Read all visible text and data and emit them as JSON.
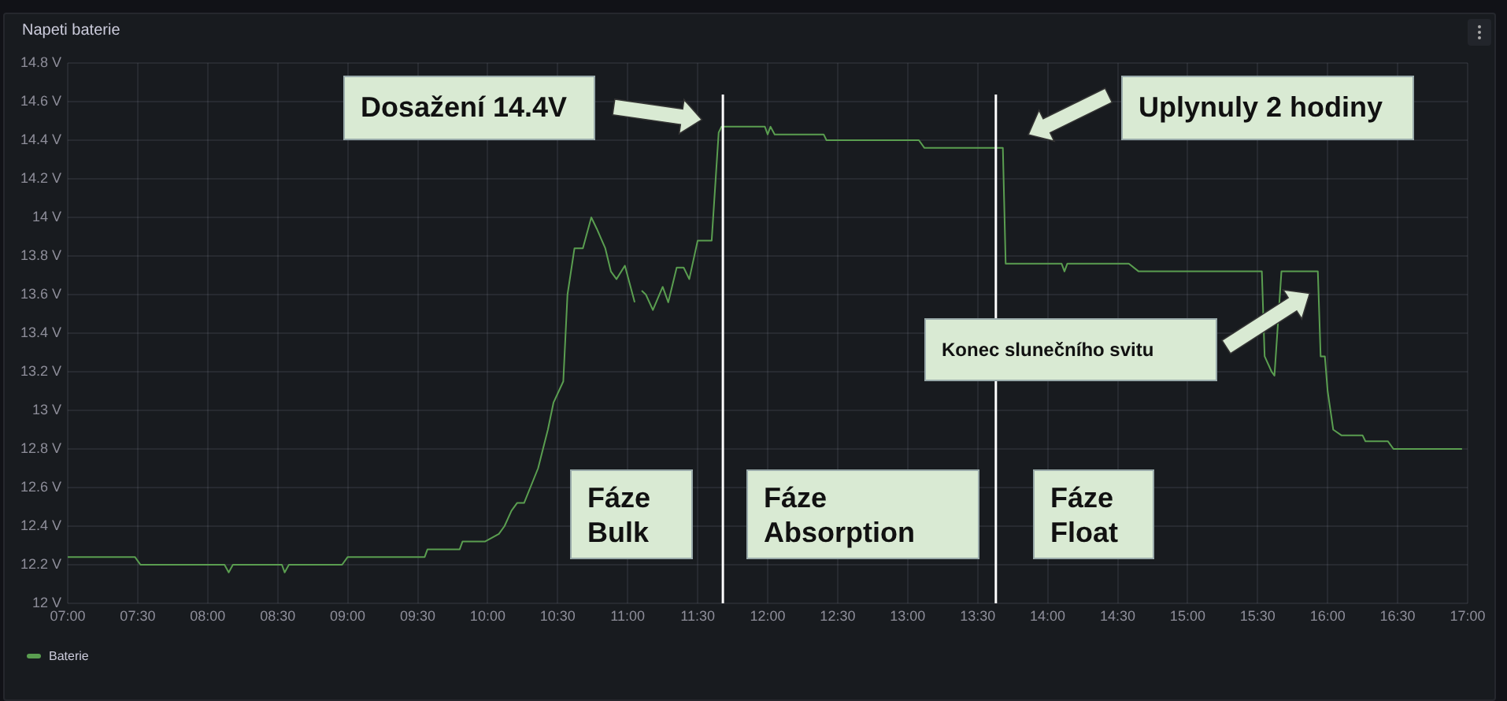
{
  "chart_data": {
    "type": "line",
    "title": "Napeti baterie",
    "xlim": [
      7,
      17
    ],
    "xticks": [
      {
        "value": 7,
        "label": "07:00"
      },
      {
        "value": 7.5,
        "label": "07:30"
      },
      {
        "value": 8,
        "label": "08:00"
      },
      {
        "value": 8.5,
        "label": "08:30"
      },
      {
        "value": 9,
        "label": "09:00"
      },
      {
        "value": 9.5,
        "label": "09:30"
      },
      {
        "value": 10,
        "label": "10:00"
      },
      {
        "value": 10.5,
        "label": "10:30"
      },
      {
        "value": 11,
        "label": "11:00"
      },
      {
        "value": 11.5,
        "label": "11:30"
      },
      {
        "value": 12,
        "label": "12:00"
      },
      {
        "value": 12.5,
        "label": "12:30"
      },
      {
        "value": 13,
        "label": "13:00"
      },
      {
        "value": 13.5,
        "label": "13:30"
      },
      {
        "value": 14,
        "label": "14:00"
      },
      {
        "value": 14.5,
        "label": "14:30"
      },
      {
        "value": 15,
        "label": "15:00"
      },
      {
        "value": 15.5,
        "label": "15:30"
      },
      {
        "value": 16,
        "label": "16:00"
      },
      {
        "value": 16.5,
        "label": "16:30"
      },
      {
        "value": 17,
        "label": "17:00"
      }
    ],
    "ylim": [
      12,
      14.8
    ],
    "yticks": [
      {
        "value": 12,
        "label": "12 V"
      },
      {
        "value": 12.2,
        "label": "12.2 V"
      },
      {
        "value": 12.4,
        "label": "12.4 V"
      },
      {
        "value": 12.6,
        "label": "12.6 V"
      },
      {
        "value": 12.8,
        "label": "12.8 V"
      },
      {
        "value": 13,
        "label": "13 V"
      },
      {
        "value": 13.2,
        "label": "13.2 V"
      },
      {
        "value": 13.4,
        "label": "13.4 V"
      },
      {
        "value": 13.6,
        "label": "13.6 V"
      },
      {
        "value": 13.8,
        "label": "13.8 V"
      },
      {
        "value": 14,
        "label": "14 V"
      },
      {
        "value": 14.2,
        "label": "14.2 V"
      },
      {
        "value": 14.4,
        "label": "14.4 V"
      },
      {
        "value": 14.6,
        "label": "14.6 V"
      },
      {
        "value": 14.8,
        "label": "14.8 V"
      }
    ],
    "grid": true,
    "legend": "bottom",
    "marker": "none",
    "line_style": "solid",
    "series": [
      {
        "name": "Baterie",
        "color": "#5a9e50",
        "x": [
          7.0,
          7.45,
          7.48,
          7.52,
          8.12,
          8.15,
          8.18,
          8.53,
          8.55,
          8.58,
          8.96,
          9.0,
          9.55,
          9.57,
          9.8,
          9.82,
          9.98,
          10.08,
          10.12,
          10.17,
          10.21,
          10.26,
          10.36,
          10.43,
          10.47,
          10.54,
          10.57,
          10.62,
          10.68,
          10.74,
          10.78,
          10.84,
          10.88,
          10.92,
          10.98,
          11.05,
          11.07,
          11.1,
          11.13,
          11.18,
          11.25,
          11.29,
          11.35,
          11.4,
          11.44,
          11.5,
          11.6,
          11.65,
          11.67,
          11.98,
          12.0,
          12.02,
          12.05,
          12.4,
          12.42,
          13.08,
          13.12,
          13.68,
          13.7,
          14.1,
          14.12,
          14.14,
          14.58,
          14.65,
          15.32,
          15.53,
          15.55,
          15.6,
          15.62,
          15.67,
          15.93,
          15.95,
          15.98,
          16.0,
          16.04,
          16.1,
          16.25,
          16.27,
          16.43,
          16.47,
          16.96
        ],
        "values": [
          12.24,
          12.24,
          12.24,
          12.2,
          12.2,
          12.16,
          12.2,
          12.2,
          12.16,
          12.2,
          12.2,
          12.24,
          12.24,
          12.28,
          12.28,
          12.32,
          12.32,
          12.36,
          12.4,
          12.48,
          12.52,
          12.52,
          12.7,
          12.9,
          13.04,
          13.15,
          13.6,
          13.84,
          13.84,
          14.0,
          13.94,
          13.84,
          13.72,
          13.68,
          13.75,
          13.56,
          null,
          13.62,
          13.6,
          13.52,
          13.64,
          13.56,
          13.74,
          13.74,
          13.68,
          13.88,
          13.88,
          14.44,
          14.47,
          14.47,
          14.43,
          14.47,
          14.43,
          14.43,
          14.4,
          14.4,
          14.36,
          14.36,
          13.76,
          13.76,
          13.72,
          13.76,
          13.76,
          13.72,
          13.72,
          13.72,
          13.28,
          13.2,
          13.18,
          13.72,
          13.72,
          13.28,
          13.28,
          13.1,
          12.9,
          12.87,
          12.87,
          12.84,
          12.84,
          12.8,
          12.8
        ]
      }
    ],
    "ref_lines": [
      {
        "axis": "x",
        "value": 11.68,
        "color": "#ffffff"
      },
      {
        "axis": "x",
        "value": 13.63,
        "color": "#ffffff"
      }
    ],
    "annotations": [
      "Dosažení 14.4V",
      "Uplynuly 2 hodiny",
      "Konec slunečního svitu",
      "Fáze\nBulk",
      "Fáze\nAbsorption",
      "Fáze\nFloat"
    ]
  }
}
